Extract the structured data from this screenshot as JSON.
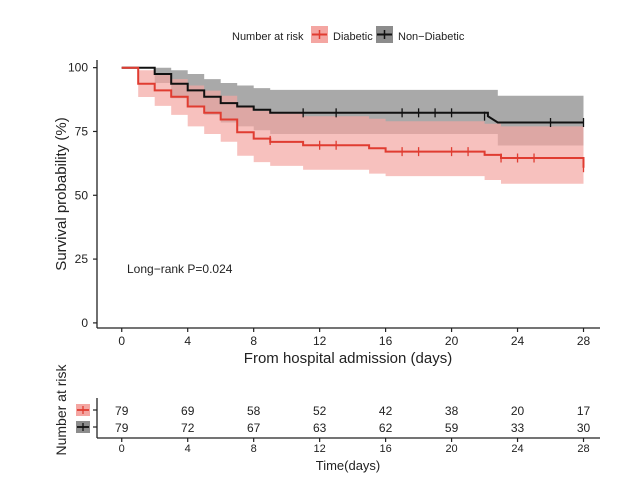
{
  "chart_data": {
    "type": "line",
    "subtype": "kaplan-meier",
    "legend_title": "Number at risk",
    "legend_position": "top",
    "xlabel": "From hospital admission (days)",
    "ylabel": "Survival probability (%)",
    "xlim": [
      -1.5,
      29
    ],
    "ylim": [
      -2,
      103
    ],
    "xticks": [
      0,
      4,
      8,
      12,
      16,
      20,
      24,
      28
    ],
    "yticks": [
      0,
      25,
      50,
      75,
      100
    ],
    "grid": false,
    "annotation": "Long−rank P=0.024",
    "series": [
      {
        "name": "Non−Diabetic",
        "color": "#111111",
        "band_color": "#8c8c8c",
        "steps": [
          [
            0,
            100
          ],
          [
            2,
            100
          ],
          [
            2,
            97.5
          ],
          [
            3,
            97.5
          ],
          [
            3,
            93.7
          ],
          [
            4,
            93.7
          ],
          [
            4,
            91.1
          ],
          [
            5,
            91.1
          ],
          [
            5,
            88.6
          ],
          [
            6,
            88.6
          ],
          [
            6,
            86.1
          ],
          [
            7,
            86.1
          ],
          [
            7,
            84.8
          ],
          [
            8,
            84.8
          ],
          [
            8,
            83.5
          ],
          [
            9,
            83.5
          ],
          [
            9,
            82.3
          ],
          [
            28,
            82.3
          ],
          [
            28,
            82.3
          ]
        ],
        "drop_point": [
          22.2,
          81.0
        ],
        "tail": [
          [
            22.2,
            81.0
          ],
          [
            22.8,
            78.5
          ],
          [
            28,
            78.5
          ]
        ],
        "upper": [
          [
            0,
            100
          ],
          [
            2,
            100
          ],
          [
            2,
            100
          ],
          [
            3,
            100
          ],
          [
            3,
            99
          ],
          [
            4,
            99
          ],
          [
            4,
            97.5
          ],
          [
            5,
            97.5
          ],
          [
            5,
            95.5
          ],
          [
            6,
            95.5
          ],
          [
            6,
            94
          ],
          [
            7,
            94
          ],
          [
            7,
            93
          ],
          [
            8,
            93
          ],
          [
            8,
            92
          ],
          [
            9,
            92
          ],
          [
            9,
            91.3
          ],
          [
            22.8,
            91.3
          ],
          [
            22.8,
            89
          ],
          [
            28,
            89
          ]
        ],
        "lower": [
          [
            0,
            100
          ],
          [
            2,
            100
          ],
          [
            2,
            94
          ],
          [
            3,
            94
          ],
          [
            3,
            88
          ],
          [
            4,
            88
          ],
          [
            4,
            85
          ],
          [
            5,
            85
          ],
          [
            5,
            81.5
          ],
          [
            6,
            81.5
          ],
          [
            6,
            78.5
          ],
          [
            7,
            78.5
          ],
          [
            7,
            77
          ],
          [
            8,
            77
          ],
          [
            8,
            75.5
          ],
          [
            9,
            75.5
          ],
          [
            9,
            74
          ],
          [
            22.8,
            74
          ],
          [
            22.8,
            69.5
          ],
          [
            28,
            69.5
          ]
        ],
        "censors": [
          [
            11,
            82.3
          ],
          [
            13,
            82.3
          ],
          [
            17,
            82.3
          ],
          [
            18,
            82.3
          ],
          [
            19,
            82.3
          ],
          [
            20,
            82.3
          ],
          [
            22,
            81
          ],
          [
            26,
            78.5
          ],
          [
            28,
            78.5
          ]
        ],
        "at_risk": [
          79,
          72,
          67,
          63,
          62,
          59,
          33,
          30
        ]
      },
      {
        "name": "Diabetic",
        "color": "#e03c31",
        "band_color": "#f4a6a2",
        "steps": [
          [
            0,
            100
          ],
          [
            1,
            100
          ],
          [
            1,
            93.7
          ],
          [
            2,
            93.7
          ],
          [
            2,
            91.1
          ],
          [
            3,
            91.1
          ],
          [
            3,
            88.6
          ],
          [
            4,
            88.6
          ],
          [
            4,
            84.8
          ],
          [
            5,
            84.8
          ],
          [
            5,
            82.3
          ],
          [
            6,
            82.3
          ],
          [
            6,
            79.7
          ],
          [
            7,
            79.7
          ],
          [
            7,
            74.7
          ],
          [
            8,
            74.7
          ],
          [
            8,
            72.2
          ],
          [
            9,
            72.2
          ],
          [
            9,
            70.9
          ],
          [
            11,
            70.9
          ],
          [
            11,
            69.6
          ],
          [
            15,
            69.6
          ],
          [
            15,
            68.4
          ],
          [
            16,
            68.4
          ],
          [
            16,
            67.1
          ],
          [
            22,
            67.1
          ],
          [
            22,
            65.8
          ],
          [
            23,
            65.8
          ],
          [
            23,
            64.6
          ],
          [
            28,
            64.6
          ],
          [
            28,
            60.8
          ]
        ],
        "upper": [
          [
            0,
            100
          ],
          [
            1,
            100
          ],
          [
            1,
            99
          ],
          [
            2,
            99
          ],
          [
            2,
            97.5
          ],
          [
            3,
            97.5
          ],
          [
            3,
            95.5
          ],
          [
            4,
            95.5
          ],
          [
            4,
            93
          ],
          [
            5,
            93
          ],
          [
            5,
            91
          ],
          [
            6,
            91
          ],
          [
            6,
            89
          ],
          [
            7,
            89
          ],
          [
            7,
            85
          ],
          [
            8,
            85
          ],
          [
            8,
            83
          ],
          [
            9,
            83
          ],
          [
            9,
            82
          ],
          [
            11,
            82
          ],
          [
            11,
            81
          ],
          [
            15,
            81
          ],
          [
            15,
            80
          ],
          [
            16,
            80
          ],
          [
            16,
            79
          ],
          [
            22,
            79
          ],
          [
            22,
            78
          ],
          [
            23,
            78
          ],
          [
            23,
            77
          ],
          [
            28,
            77
          ],
          [
            28,
            75
          ]
        ],
        "lower": [
          [
            0,
            100
          ],
          [
            1,
            100
          ],
          [
            1,
            88.5
          ],
          [
            2,
            88.5
          ],
          [
            2,
            85
          ],
          [
            3,
            85
          ],
          [
            3,
            81.5
          ],
          [
            4,
            81.5
          ],
          [
            4,
            77
          ],
          [
            5,
            77
          ],
          [
            5,
            74
          ],
          [
            6,
            74
          ],
          [
            6,
            71
          ],
          [
            7,
            71
          ],
          [
            7,
            65.5
          ],
          [
            8,
            65.5
          ],
          [
            8,
            63
          ],
          [
            9,
            63
          ],
          [
            9,
            61.5
          ],
          [
            11,
            61.5
          ],
          [
            11,
            60
          ],
          [
            15,
            60
          ],
          [
            15,
            58.5
          ],
          [
            16,
            58.5
          ],
          [
            16,
            57.5
          ],
          [
            22,
            57.5
          ],
          [
            22,
            56
          ],
          [
            23,
            56
          ],
          [
            23,
            54.5
          ],
          [
            28,
            54.5
          ],
          [
            28,
            53
          ]
        ],
        "censors": [
          [
            9,
            71.5
          ],
          [
            12,
            69.6
          ],
          [
            13,
            69.6
          ],
          [
            17,
            67.1
          ],
          [
            18,
            67.1
          ],
          [
            20,
            67.1
          ],
          [
            21,
            67.1
          ],
          [
            23,
            64.6
          ],
          [
            24,
            64.6
          ],
          [
            25,
            64.6
          ],
          [
            28,
            60.8
          ]
        ],
        "at_risk": [
          79,
          69,
          58,
          52,
          42,
          38,
          20,
          17
        ]
      }
    ],
    "risk_table": {
      "ylabel": "Number at risk",
      "xlabel": "Time(days)",
      "xticks": [
        0,
        4,
        8,
        12,
        16,
        20,
        24,
        28
      ]
    }
  }
}
